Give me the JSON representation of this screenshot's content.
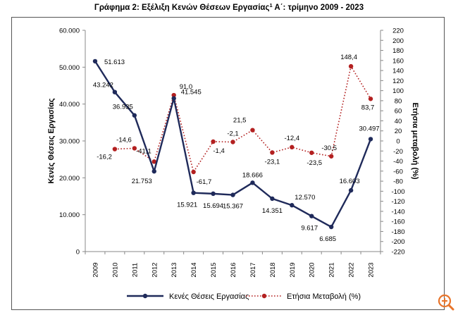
{
  "page": {
    "title": "Γράφημα 2: Εξέλιξη Κενών Θέσεων Εργασίας",
    "title_sup": "1",
    "title_suffix": " Α΄: τρίμηνο 2009 - 2023"
  },
  "chart_data": {
    "type": "line",
    "x": [
      "2009",
      "2010",
      "2011",
      "2012",
      "2013",
      "2014",
      "2015",
      "2016",
      "2017",
      "2018",
      "2019",
      "2020",
      "2021",
      "2022",
      "2023"
    ],
    "series": [
      {
        "name": "Κενές Θέσεις Εργασίας",
        "axis": "left",
        "color": "#1f2a5a",
        "style": "solid",
        "values": [
          51613,
          43242,
          36935,
          21753,
          41545,
          15921,
          15694,
          15367,
          18666,
          14351,
          12570,
          9617,
          6685,
          16603,
          30497
        ],
        "labels": [
          "51.613",
          "43.242",
          "36.935",
          "21.753",
          "41.545",
          "15.921",
          "15.694",
          "15.367",
          "18.666",
          "14.351",
          "12.570",
          "9.617",
          "6.685",
          "16.603",
          "30.497"
        ]
      },
      {
        "name": "Ετήσια Μεταβολή  (%)",
        "axis": "right",
        "color": "#b32020",
        "style": "dotted",
        "values": [
          null,
          -16.2,
          -14.6,
          -41.1,
          91.0,
          -61.7,
          -1.4,
          -2.1,
          21.5,
          -23.1,
          -12.4,
          -23.5,
          -30.5,
          148.4,
          83.7
        ],
        "labels": [
          null,
          "-16,2",
          "-14,6",
          "-41,1",
          "91,0",
          "-61,7",
          "-1,4",
          "-2,1",
          "21,5",
          "-23,1",
          "-12,4",
          "-23,5",
          "-30,5",
          "148,4",
          "83,7"
        ]
      }
    ],
    "y_left": {
      "label": "Κενές Θέσεις Εργασίας",
      "lim": [
        0,
        60000
      ],
      "ticks": [
        0,
        10000,
        20000,
        30000,
        40000,
        50000,
        60000
      ],
      "tick_labels": [
        "0",
        "10.000",
        "20.000",
        "30.000",
        "40.000",
        "50.000",
        "60.000"
      ]
    },
    "y_right": {
      "label": "Ετήσια μεταβολή (%)",
      "lim": [
        -220,
        220
      ],
      "ticks": [
        -220,
        -200,
        -180,
        -160,
        -140,
        -120,
        -100,
        -80,
        -60,
        -40,
        -20,
        0,
        20,
        40,
        60,
        80,
        100,
        120,
        140,
        160,
        180,
        200,
        220
      ],
      "tick_labels": [
        "-220",
        "-200",
        "-180",
        "-160",
        "-140",
        "-120",
        "-100",
        "-80",
        "-60",
        "-40",
        "-20",
        "0",
        "20",
        "40",
        "60",
        "80",
        "100",
        "120",
        "140",
        "160",
        "180",
        "200",
        "220"
      ]
    },
    "legend_position": "bottom",
    "grid": false
  },
  "ui": {
    "zoom_icon_color": "#e8742a"
  }
}
